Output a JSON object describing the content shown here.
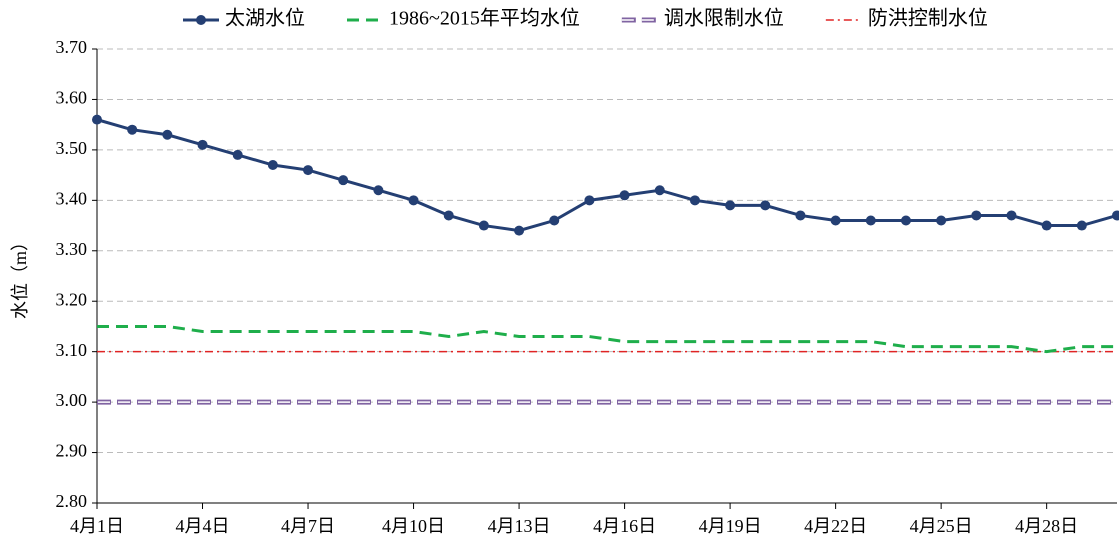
{
  "chart_data": {
    "type": "line",
    "ylabel": "水位（m）",
    "categories": [
      "4月1日",
      null,
      null,
      "4月4日",
      null,
      null,
      "4月7日",
      null,
      null,
      "4月10日",
      null,
      null,
      "4月13日",
      null,
      null,
      "4月16日",
      null,
      null,
      "4月19日",
      null,
      null,
      "4月22日",
      null,
      null,
      "4月25日",
      null,
      null,
      "4月28日",
      null,
      null
    ],
    "series": [
      {
        "name": "太湖水位",
        "color": "#243f73",
        "linestyle": "solid-marker",
        "values": [
          3.56,
          3.54,
          3.53,
          3.51,
          3.49,
          3.47,
          3.46,
          3.44,
          3.42,
          3.4,
          3.37,
          3.35,
          3.34,
          3.36,
          3.4,
          3.41,
          3.42,
          3.4,
          3.39,
          3.39,
          3.37,
          3.36,
          3.36,
          3.36,
          3.36,
          3.37,
          3.37,
          3.35,
          3.35,
          3.37
        ]
      },
      {
        "name": "1986~2015年平均水位",
        "color": "#1fae4b",
        "linestyle": "dashed",
        "values": [
          3.15,
          3.15,
          3.15,
          3.14,
          3.14,
          3.14,
          3.14,
          3.14,
          3.14,
          3.14,
          3.13,
          3.14,
          3.13,
          3.13,
          3.13,
          3.12,
          3.12,
          3.12,
          3.12,
          3.12,
          3.12,
          3.12,
          3.12,
          3.11,
          3.11,
          3.11,
          3.11,
          3.1,
          3.11,
          3.11
        ]
      },
      {
        "name": "调水限制水位",
        "color": "#8064a2",
        "linestyle": "double-dashed",
        "values": [
          3,
          3,
          3,
          3,
          3,
          3,
          3,
          3,
          3,
          3,
          3,
          3,
          3,
          3,
          3,
          3,
          3,
          3,
          3,
          3,
          3,
          3,
          3,
          3,
          3,
          3,
          3,
          3,
          3,
          3
        ]
      },
      {
        "name": "防洪控制水位",
        "color": "#e02424",
        "linestyle": "dash-dot",
        "values": [
          3.1,
          3.1,
          3.1,
          3.1,
          3.1,
          3.1,
          3.1,
          3.1,
          3.1,
          3.1,
          3.1,
          3.1,
          3.1,
          3.1,
          3.1,
          3.1,
          3.1,
          3.1,
          3.1,
          3.1,
          3.1,
          3.1,
          3.1,
          3.1,
          3.1,
          3.1,
          3.1,
          3.1,
          3.1,
          3.1
        ]
      }
    ],
    "ylim": [
      2.8,
      3.7
    ],
    "yticks": [
      {
        "value": 2.8,
        "label": "2.80"
      },
      {
        "value": 2.9,
        "label": "2.90"
      },
      {
        "value": 3,
        "label": "3.00"
      },
      {
        "value": 3.1,
        "label": "3.10"
      },
      {
        "value": 3.2,
        "label": "3.20"
      },
      {
        "value": 3.3,
        "label": "3.30"
      },
      {
        "value": 3.4,
        "label": "3.40"
      },
      {
        "value": 3.5,
        "label": "3.50"
      },
      {
        "value": 3.6,
        "label": "3.60"
      },
      {
        "value": 3.7,
        "label": "3.70"
      }
    ],
    "grid": true,
    "legend": "top"
  }
}
